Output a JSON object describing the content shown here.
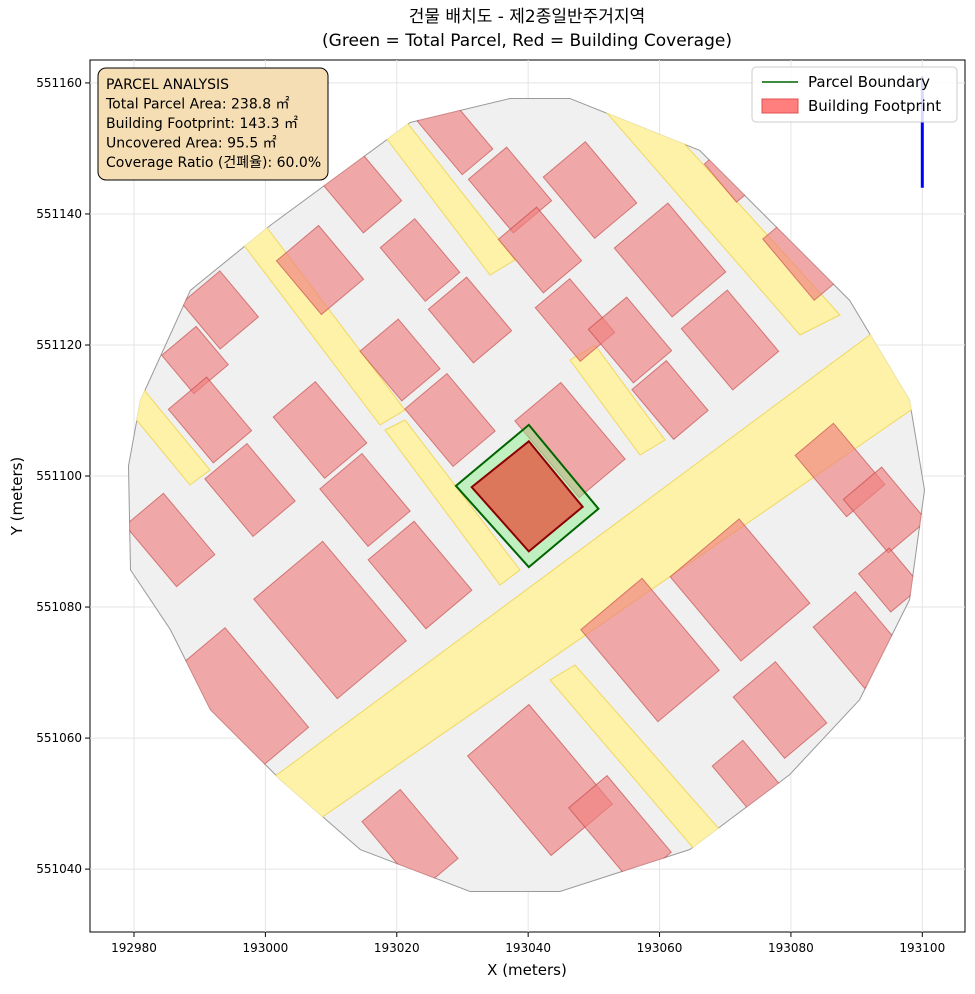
{
  "chart_data": {
    "type": "map",
    "title": "건물 배치도 - 제2종일반주거지역",
    "subtitle": "(Green = Total Parcel, Red = Building Coverage)",
    "x_label": "X (meters)",
    "y_label": "Y (meters)",
    "xlim": [
      192973.3,
      193106.5
    ],
    "ylim": [
      551030.4,
      551163.5
    ],
    "xticks": [
      192980,
      193000,
      193020,
      193040,
      193060,
      193080,
      193100
    ],
    "yticks": [
      551040,
      551060,
      551080,
      551100,
      551120,
      551140,
      551160
    ],
    "grid": true,
    "legend": "upper right",
    "series": [
      {
        "name": "Parcel Boundary",
        "color": "#006400",
        "fill": "#90ee90",
        "x": [
          193029.0,
          193040.1,
          193050.7,
          193040.1
        ],
        "y": [
          551098.5,
          551107.8,
          551095.0,
          551086.1
        ]
      },
      {
        "name": "Building Footprint",
        "color": "#8b0000",
        "fill": "#e0614a",
        "x": [
          193031.4,
          193040.1,
          193048.3,
          193040.1
        ],
        "y": [
          551098.3,
          551105.3,
          551095.3,
          551088.5
        ]
      }
    ],
    "arrow": {
      "color": "#0000ff",
      "x": [
        193100,
        193100
      ],
      "y": [
        551144,
        551161
      ]
    },
    "annotation": [
      "PARCEL ANALYSIS",
      "Total Parcel Area: 238.8 ㎡",
      "Building Footprint: 143.3 ㎡",
      "Uncovered Area: 95.5 ㎡",
      "Coverage Ratio (건폐율): 60.0%"
    ]
  }
}
